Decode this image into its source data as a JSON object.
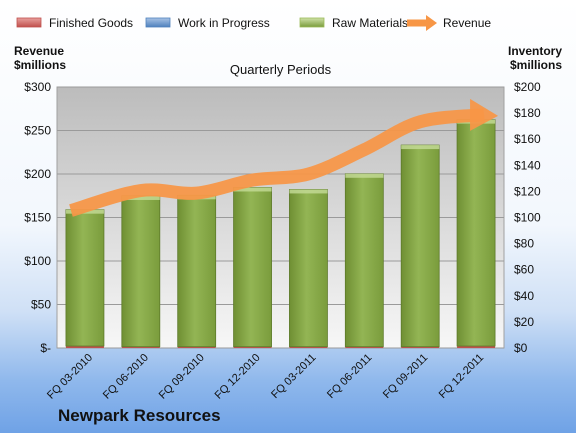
{
  "company_name": "Newpark Resources",
  "chart_data": {
    "type": "bar",
    "title": "Quarterly Periods",
    "categories": [
      "FQ 03-2010",
      "FQ 06-2010",
      "FQ 09-2010",
      "FQ 12-2010",
      "FQ 03-2011",
      "FQ 06-2011",
      "FQ 09-2011",
      "FQ 12-2011"
    ],
    "left_axis": {
      "label_lines": [
        "Revenue",
        "$millions"
      ],
      "ticks": [
        "$-",
        "$50",
        "$100",
        "$150",
        "$200",
        "$250",
        "$300"
      ],
      "ylim": [
        0,
        300
      ]
    },
    "right_axis": {
      "label_lines": [
        "Inventory",
        "$millions"
      ],
      "ticks": [
        "$0",
        "$20",
        "$40",
        "$60",
        "$80",
        "$100",
        "$120",
        "$140",
        "$160",
        "$180",
        "$200"
      ],
      "ylim": [
        0,
        200
      ]
    },
    "legend": {
      "position": "top",
      "items": [
        {
          "name": "Finished Goods",
          "color": "#c0504d"
        },
        {
          "name": "Work in Progress",
          "color": "#4f81bd"
        },
        {
          "name": "Raw Materials",
          "color": "#9bbb59"
        },
        {
          "name": "Revenue",
          "color": "#f79646"
        }
      ]
    },
    "series": [
      {
        "name": "Finished Goods",
        "axis": "right",
        "values": [
          1.5,
          1.0,
          1.0,
          1.0,
          1.0,
          1.0,
          1.0,
          1.5
        ]
      },
      {
        "name": "Work in Progress",
        "axis": "right",
        "values": [
          0,
          0,
          0,
          0,
          0,
          0,
          0,
          0
        ]
      },
      {
        "name": "Raw Materials",
        "axis": "right",
        "values": [
          104.5,
          115.5,
          116,
          122,
          120.5,
          132.5,
          154.5,
          173.5
        ]
      },
      {
        "name": "Revenue",
        "axis": "left",
        "type": "line",
        "values": [
          158,
          181,
          178,
          193,
          200,
          228,
          260,
          268
        ]
      }
    ],
    "grid": true
  }
}
